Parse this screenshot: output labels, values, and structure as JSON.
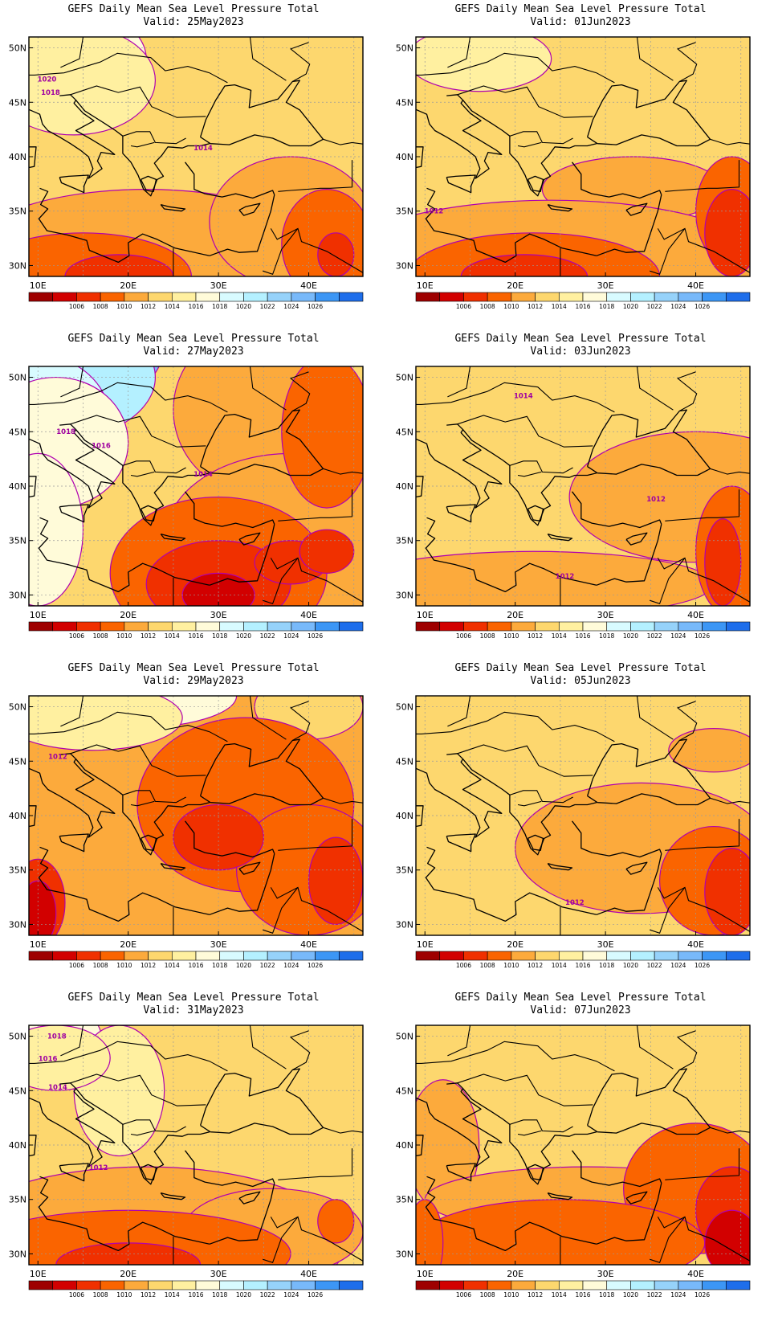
{
  "figure": {
    "title": "GEFS Daily Mean Sea Level Pressure Total",
    "valid_prefix": "Valid: "
  },
  "axes": {
    "lon_ticks": [
      "10E",
      "20E",
      "30E",
      "40E"
    ],
    "lat_ticks": [
      "50N",
      "45N",
      "40N",
      "35N",
      "30N"
    ],
    "lon_range": [
      9,
      46
    ],
    "lat_range": [
      29,
      51
    ]
  },
  "colorbar": {
    "colors": [
      "#9e0000",
      "#d20000",
      "#f03000",
      "#fa6400",
      "#fcaa3c",
      "#fdd76e",
      "#fff0a0",
      "#fffbd9",
      "#d8fbff",
      "#b4f0ff",
      "#96d2fa",
      "#78b9fa",
      "#3c96f5",
      "#1e6eeb"
    ],
    "labels": [
      "1006",
      "1008",
      "1010",
      "1012",
      "1014",
      "1016",
      "1018",
      "1020",
      "1022",
      "1024",
      "1026"
    ]
  },
  "panels": [
    {
      "valid": "25May2023",
      "contour_labels": [
        {
          "text": "1020",
          "lon": 11.0,
          "lat": 46.9
        },
        {
          "text": "1018",
          "lon": 11.4,
          "lat": 45.7
        },
        {
          "text": "1014",
          "lon": 28.3,
          "lat": 40.6
        }
      ]
    },
    {
      "valid": "01Jun2023",
      "contour_labels": [
        {
          "text": "1012",
          "lon": 11.0,
          "lat": 34.8
        }
      ]
    },
    {
      "valid": "27May2023",
      "contour_labels": [
        {
          "text": "1018",
          "lon": 13.1,
          "lat": 44.8
        },
        {
          "text": "1016",
          "lon": 17.0,
          "lat": 43.5
        },
        {
          "text": "1014",
          "lon": 28.3,
          "lat": 40.9
        }
      ]
    },
    {
      "valid": "03Jun2023",
      "contour_labels": [
        {
          "text": "1014",
          "lon": 20.9,
          "lat": 48.1
        },
        {
          "text": "1012",
          "lon": 35.6,
          "lat": 38.6
        },
        {
          "text": "1012",
          "lon": 25.5,
          "lat": 31.5
        }
      ]
    },
    {
      "valid": "29May2023",
      "contour_labels": [
        {
          "text": "1012",
          "lon": 12.2,
          "lat": 45.2
        }
      ]
    },
    {
      "valid": "05Jun2023",
      "contour_labels": [
        {
          "text": "1012",
          "lon": 26.6,
          "lat": 31.8
        }
      ]
    },
    {
      "valid": "31May2023",
      "contour_labels": [
        {
          "text": "1018",
          "lon": 12.1,
          "lat": 49.8
        },
        {
          "text": "1016",
          "lon": 11.1,
          "lat": 47.7
        },
        {
          "text": "1014",
          "lon": 12.2,
          "lat": 45.1
        },
        {
          "text": "1012",
          "lon": 16.7,
          "lat": 37.7
        }
      ]
    },
    {
      "valid": "07Jun2023",
      "contour_labels": []
    }
  ]
}
